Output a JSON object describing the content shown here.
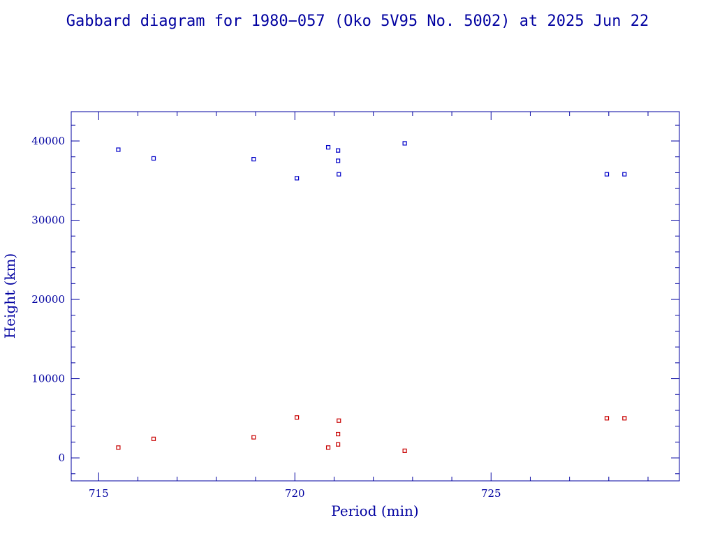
{
  "chart_data": {
    "type": "scatter",
    "title": "Gabbard diagram for 1980−057 (Oko 5V95 No. 5002) at 2025 Jun 22",
    "xlabel": "Period (min)",
    "ylabel": "Height (km)",
    "xlim": [
      714.3,
      729.8
    ],
    "ylim": [
      -2900,
      43700
    ],
    "x_ticks": [
      715,
      720,
      725
    ],
    "x_tick_labels": [
      "715",
      "720",
      "725"
    ],
    "y_ticks": [
      0,
      10000,
      20000,
      30000,
      40000
    ],
    "y_tick_labels": [
      "0",
      "10000",
      "20000",
      "30000",
      "40000"
    ],
    "grid": false,
    "legend": "none",
    "series": [
      {
        "color": "#0000c8",
        "points": [
          [
            715.5,
            38900
          ],
          [
            716.4,
            37800
          ],
          [
            718.95,
            37700
          ],
          [
            720.05,
            35300
          ],
          [
            720.85,
            39200
          ],
          [
            721.1,
            38800
          ],
          [
            721.1,
            37500
          ],
          [
            721.12,
            35800
          ],
          [
            722.8,
            39700
          ],
          [
            727.95,
            35800
          ],
          [
            728.4,
            35800
          ]
        ]
      },
      {
        "color": "#c80000",
        "points": [
          [
            715.5,
            1300
          ],
          [
            716.4,
            2400
          ],
          [
            718.95,
            2600
          ],
          [
            720.05,
            5100
          ],
          [
            720.85,
            1300
          ],
          [
            721.1,
            1700
          ],
          [
            721.1,
            3000
          ],
          [
            721.12,
            4700
          ],
          [
            722.8,
            900
          ],
          [
            727.95,
            5000
          ],
          [
            728.4,
            5000
          ]
        ]
      }
    ]
  }
}
